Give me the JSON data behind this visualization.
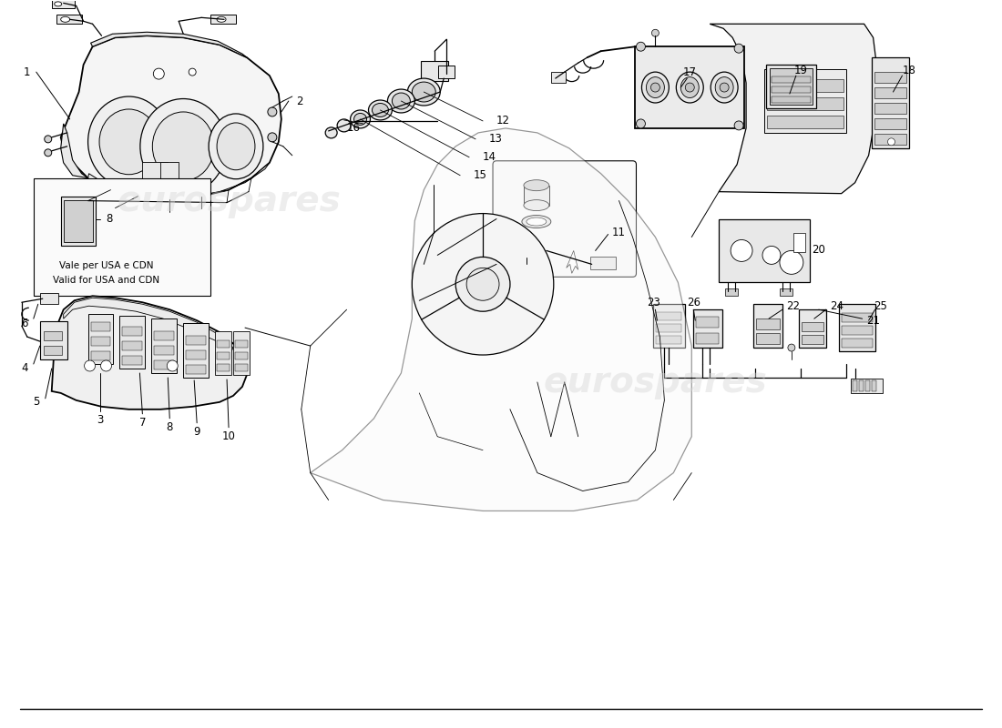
{
  "bg_color": "#ffffff",
  "lc": "#000000",
  "gray1": "#e8e8e8",
  "gray2": "#d0d0d0",
  "gray3": "#c0c0c0",
  "fig_width": 11.0,
  "fig_height": 8.0,
  "dpi": 100,
  "fs": 8.5,
  "note_line1": "Vale per USA e CDN",
  "note_line2": "Valid for USA and CDN",
  "wm": "eurospares",
  "wm_color": "#d8d8d8",
  "lw": 0.9,
  "lw2": 1.3
}
